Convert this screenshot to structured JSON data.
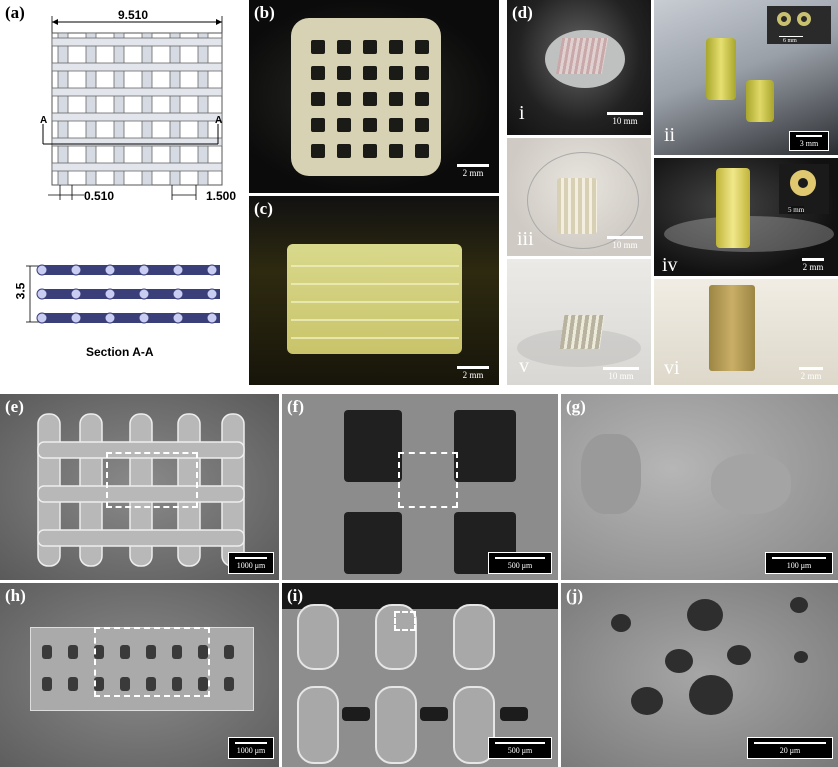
{
  "panel_a": {
    "label": "(a)",
    "dim_width": "9.510",
    "dim_strand": "0.510",
    "dim_gap": "1.500",
    "dim_height": "3.5",
    "section_marker": "A",
    "section_title": "Section A-A"
  },
  "panel_b": {
    "label": "(b)",
    "scale": "2 mm"
  },
  "panel_c": {
    "label": "(c)",
    "scale": "2 mm"
  },
  "panel_d": {
    "label": "(d)",
    "sub_i": "i",
    "scale_i": "10 mm",
    "sub_ii": "ii",
    "scale_ii": "3 mm",
    "inset_ii_scale": "6 mm",
    "sub_iii": "iii",
    "scale_iii": "10 mm",
    "sub_iv": "iv",
    "scale_iv": "2 mm",
    "inset_iv_scale": "5 mm",
    "sub_v": "v",
    "scale_v": "10 mm",
    "sub_vi": "vi",
    "scale_vi": "2 mm"
  },
  "panel_e": {
    "label": "(e)",
    "scale": "1000 μm"
  },
  "panel_f": {
    "label": "(f)",
    "scale": "500 μm"
  },
  "panel_g": {
    "label": "(g)",
    "scale": "100 μm"
  },
  "panel_h": {
    "label": "(h)",
    "scale": "1000 μm"
  },
  "panel_i": {
    "label": "(i)",
    "scale": "500 μm"
  },
  "panel_j": {
    "label": "(j)",
    "scale": "20 μm"
  }
}
